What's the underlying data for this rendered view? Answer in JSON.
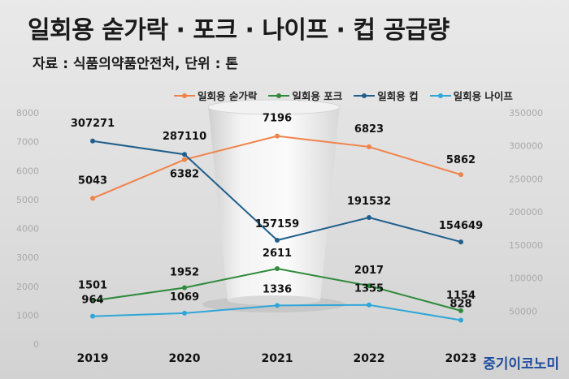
{
  "title": "일회용 숟가락 · 포크 · 나이프 · 컵 공급량",
  "source": "자료 : 식품의약품안전처, 단위 : 톤",
  "watermark": "중기이코노미",
  "colors": {
    "spoon": "#f0834a",
    "fork": "#2f8a3b",
    "cup": "#1f5f8c",
    "knife": "#2ea6d8"
  },
  "chart_data": {
    "type": "line",
    "categories": [
      "2019",
      "2020",
      "2021",
      "2022",
      "2023"
    ],
    "left_axis": {
      "ylim": [
        0,
        8000
      ],
      "ticks": [
        "0",
        "1000",
        "2000",
        "3000",
        "4000",
        "5000",
        "6000",
        "7000",
        "8000"
      ]
    },
    "right_axis": {
      "ylim": [
        0,
        350000
      ],
      "ticks": [
        "50000",
        "100000",
        "150000",
        "200000",
        "250000",
        "300000",
        "350000"
      ]
    },
    "legend_position": "top",
    "grid": false,
    "series": [
      {
        "name": "일회용 숟가락",
        "axis": "left",
        "color": "#f0834a",
        "values": [
          5043,
          6382,
          7196,
          6823,
          5862
        ]
      },
      {
        "name": "일회용 포크",
        "axis": "left",
        "color": "#2f8a3b",
        "values": [
          1501,
          1952,
          2611,
          2017,
          1154
        ]
      },
      {
        "name": "일회용 컵",
        "axis": "right",
        "color": "#1f5f8c",
        "values": [
          307271,
          287110,
          157159,
          191532,
          154649
        ]
      },
      {
        "name": "일회용 나이프",
        "axis": "left",
        "color": "#2ea6d8",
        "values": [
          964,
          1069,
          1336,
          1355,
          828
        ]
      }
    ]
  }
}
